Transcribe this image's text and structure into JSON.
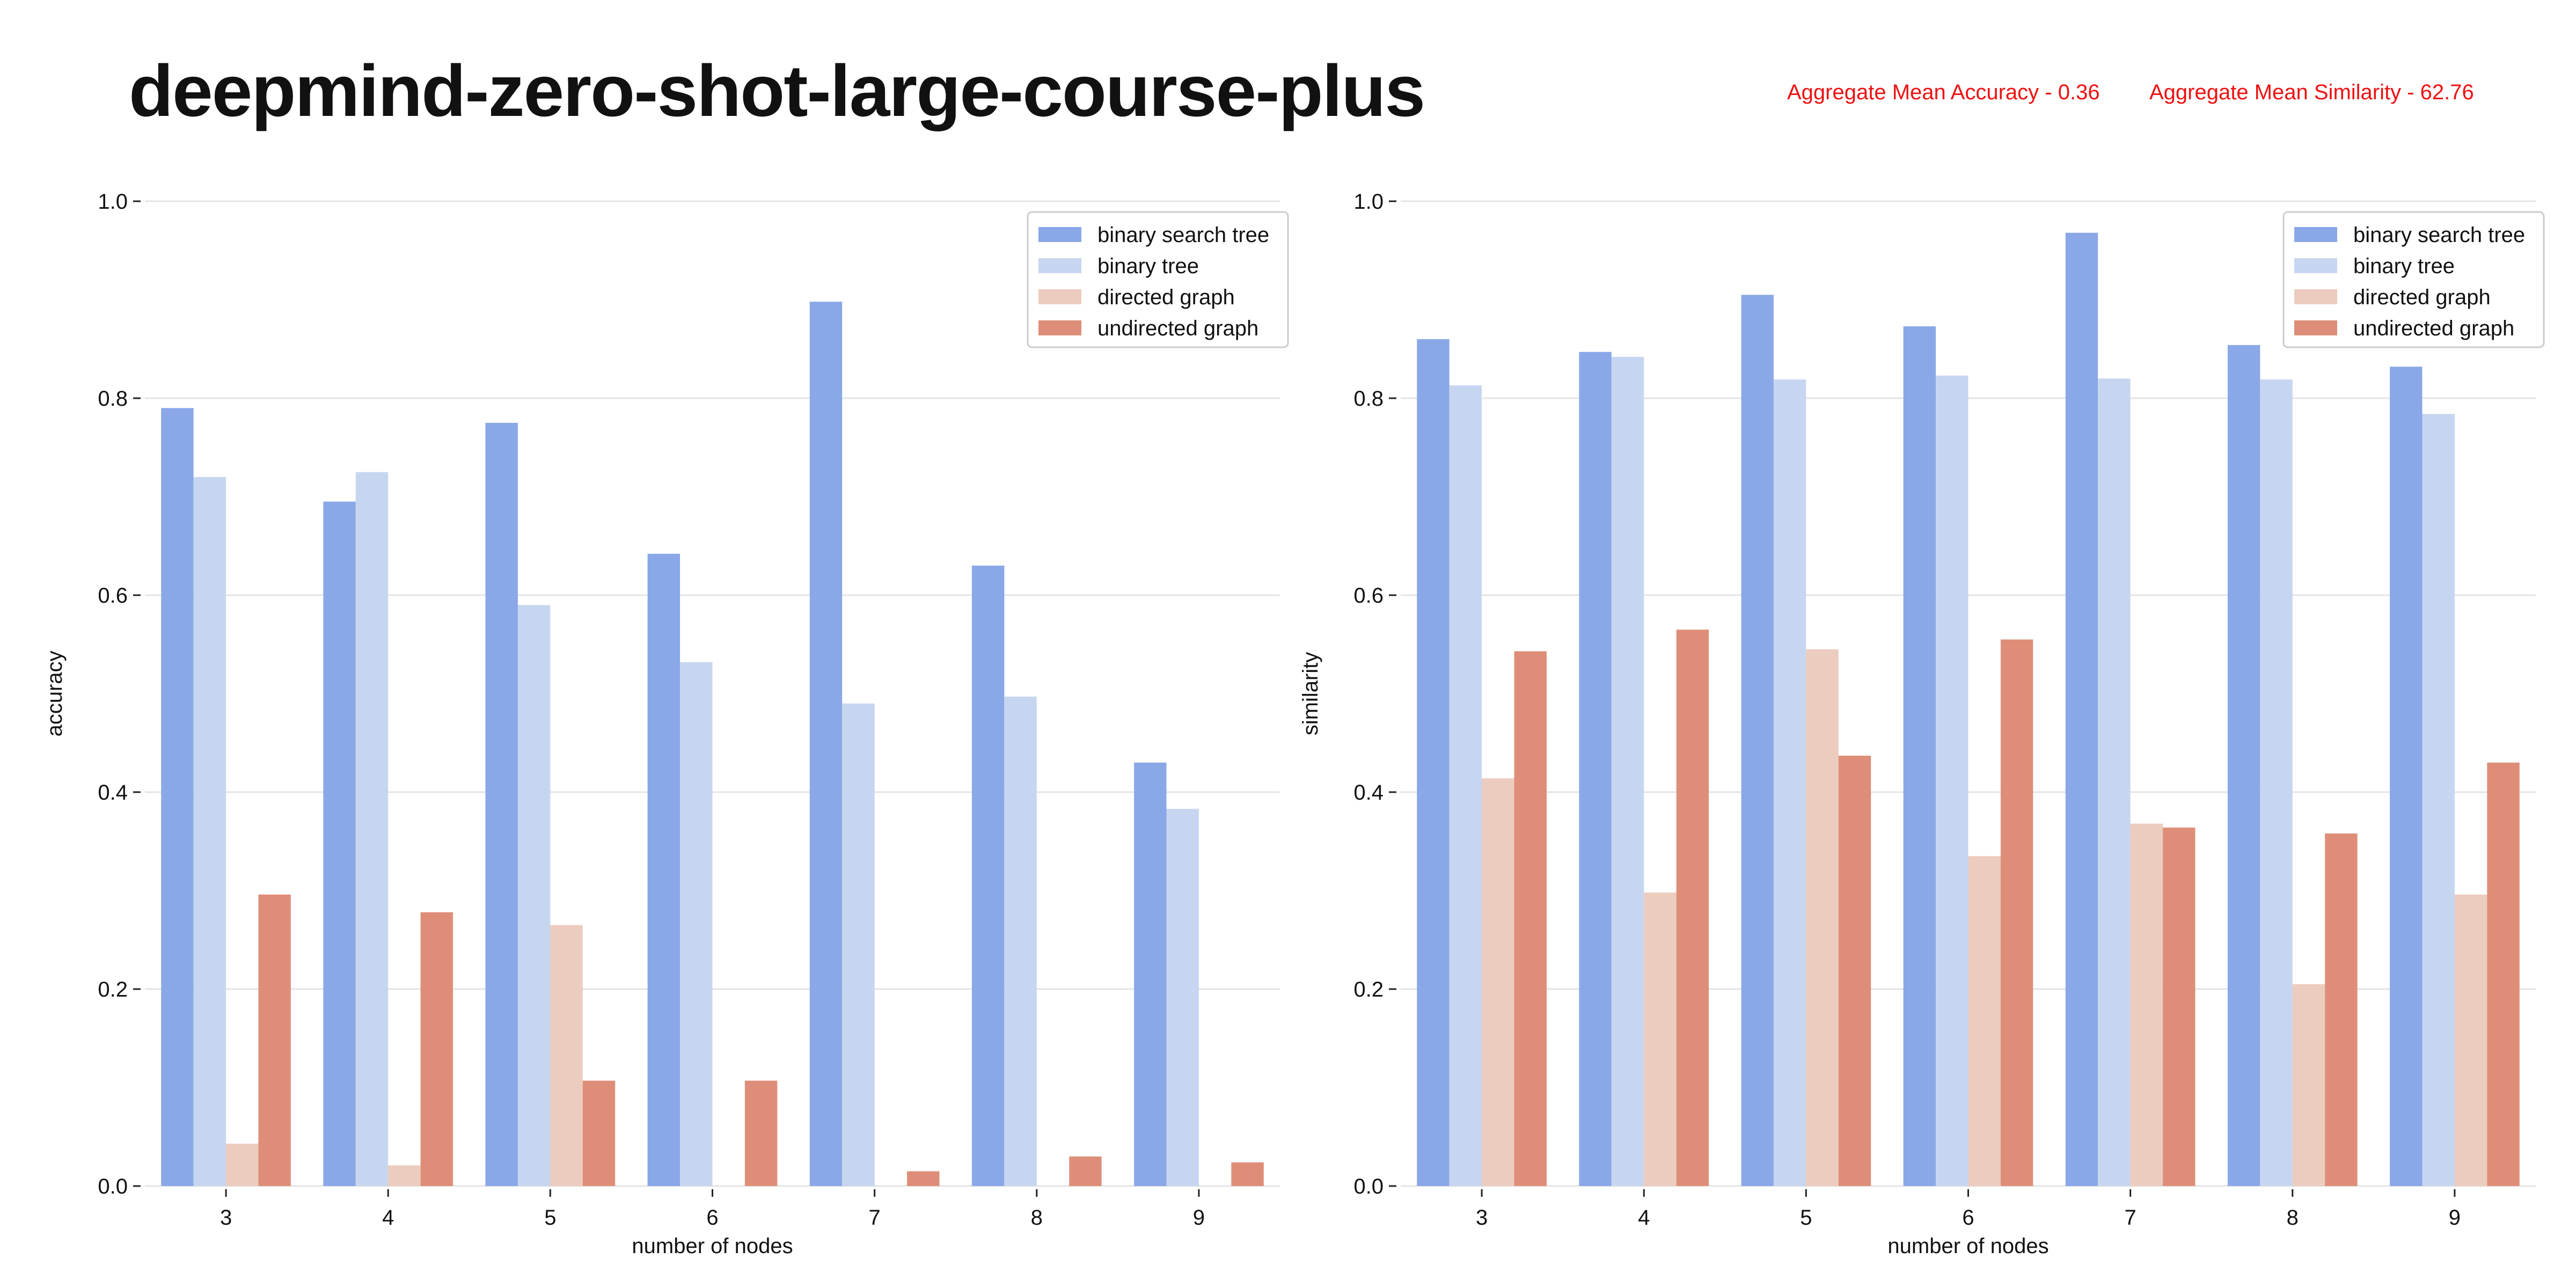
{
  "title": "deepmind-zero-shot-large-course-plus",
  "aggregates": {
    "accuracy": "Aggregate Mean Accuracy - 0.36",
    "similarity": "Aggregate Mean Similarity - 62.76"
  },
  "colors": {
    "binary search tree": "#8aa8e8",
    "binary tree": "#c7d6f0",
    "directed graph": "#ecccbe",
    "undirected graph": "#de8e78"
  },
  "chart_data": [
    {
      "type": "bar",
      "xlabel": "number of nodes",
      "ylabel": "accuracy",
      "ylim": [
        0,
        1.0
      ],
      "yticks": [
        "0.0",
        "0.2",
        "0.4",
        "0.6",
        "0.8",
        "1.0"
      ],
      "grid": true,
      "legend": "top-right",
      "categories": [
        "3",
        "4",
        "5",
        "6",
        "7",
        "8",
        "9"
      ],
      "series": [
        {
          "name": "binary search tree",
          "values": [
            0.79,
            0.695,
            0.775,
            0.642,
            0.898,
            0.63,
            0.43
          ]
        },
        {
          "name": "binary tree",
          "values": [
            0.72,
            0.725,
            0.59,
            0.532,
            0.49,
            0.497,
            0.383
          ]
        },
        {
          "name": "directed graph",
          "values": [
            0.043,
            0.021,
            0.265,
            0.0,
            0.0,
            0.0,
            0.0
          ]
        },
        {
          "name": "undirected graph",
          "values": [
            0.296,
            0.278,
            0.107,
            0.107,
            0.015,
            0.03,
            0.024
          ]
        }
      ]
    },
    {
      "type": "bar",
      "xlabel": "number of nodes",
      "ylabel": "similarity",
      "ylim": [
        0,
        1.0
      ],
      "yticks": [
        "0.0",
        "0.2",
        "0.4",
        "0.6",
        "0.8",
        "1.0"
      ],
      "grid": true,
      "legend": "top-right",
      "categories": [
        "3",
        "4",
        "5",
        "6",
        "7",
        "8",
        "9"
      ],
      "series": [
        {
          "name": "binary search tree",
          "values": [
            0.86,
            0.847,
            0.905,
            0.873,
            0.968,
            0.854,
            0.832
          ]
        },
        {
          "name": "binary tree",
          "values": [
            0.813,
            0.842,
            0.819,
            0.823,
            0.82,
            0.819,
            0.784
          ]
        },
        {
          "name": "directed graph",
          "values": [
            0.414,
            0.298,
            0.545,
            0.335,
            0.368,
            0.205,
            0.296
          ]
        },
        {
          "name": "undirected graph",
          "values": [
            0.543,
            0.565,
            0.437,
            0.555,
            0.364,
            0.358,
            0.43
          ]
        }
      ]
    }
  ]
}
